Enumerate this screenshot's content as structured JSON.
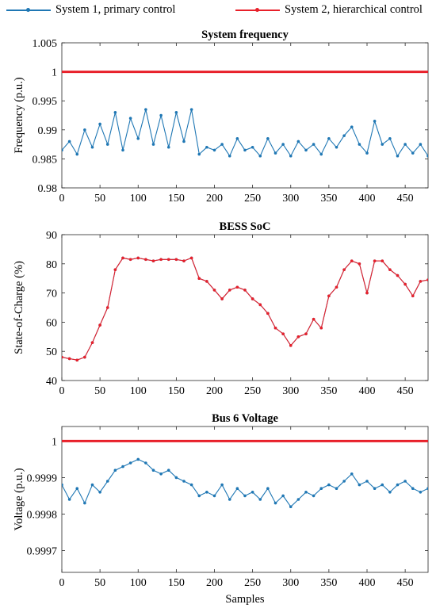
{
  "legend": [
    {
      "name": "System 1, primary control",
      "color": "#1f77b4"
    },
    {
      "name": "System 2, hierarchical control",
      "color": "#e8202a"
    }
  ],
  "xlabel": "Samples",
  "chart_data": [
    {
      "type": "line",
      "title": "System frequency",
      "xlabel": "",
      "ylabel": "Frequency (p.u.)",
      "xlim": [
        0,
        480
      ],
      "ylim": [
        0.98,
        1.005
      ],
      "xticks": [
        "0",
        "50",
        "100",
        "150",
        "200",
        "250",
        "300",
        "350",
        "400",
        "450"
      ],
      "yticks": [
        "0.98",
        "0.985",
        "0.99",
        "0.995",
        "1",
        "1.005"
      ],
      "series": [
        {
          "name": "System 1, primary control",
          "color": "#1f77b4",
          "marker": true,
          "x": [
            0,
            10,
            20,
            30,
            40,
            50,
            60,
            70,
            80,
            90,
            100,
            110,
            120,
            130,
            140,
            150,
            160,
            170,
            180,
            190,
            200,
            210,
            220,
            230,
            240,
            250,
            260,
            270,
            280,
            290,
            300,
            310,
            320,
            330,
            340,
            350,
            360,
            370,
            380,
            390,
            400,
            410,
            420,
            430,
            440,
            450,
            460,
            470,
            480
          ],
          "y": [
            0.9865,
            0.988,
            0.9858,
            0.99,
            0.987,
            0.991,
            0.9875,
            0.993,
            0.9865,
            0.992,
            0.9885,
            0.9935,
            0.9875,
            0.9925,
            0.987,
            0.993,
            0.988,
            0.9935,
            0.9858,
            0.987,
            0.9865,
            0.9875,
            0.9855,
            0.9885,
            0.9865,
            0.987,
            0.9855,
            0.9885,
            0.986,
            0.9875,
            0.9855,
            0.988,
            0.9865,
            0.9875,
            0.9858,
            0.9885,
            0.987,
            0.989,
            0.9905,
            0.9875,
            0.986,
            0.9915,
            0.9875,
            0.9885,
            0.9855,
            0.9875,
            0.986,
            0.9875,
            0.9855
          ]
        },
        {
          "name": "System 2, hierarchical control",
          "color": "#e8202a",
          "marker": false,
          "x": [
            0,
            480
          ],
          "y": [
            1.0,
            1.0
          ]
        }
      ]
    },
    {
      "type": "line",
      "title": "BESS SoC",
      "xlabel": "",
      "ylabel": "State-of-Charge (%)",
      "xlim": [
        0,
        480
      ],
      "ylim": [
        40,
        90
      ],
      "xticks": [
        "0",
        "50",
        "100",
        "150",
        "200",
        "250",
        "300",
        "350",
        "400",
        "450"
      ],
      "yticks": [
        "40",
        "50",
        "60",
        "70",
        "80",
        "90"
      ],
      "series": [
        {
          "name": "System 1, primary control",
          "color": "#1f77b4",
          "marker": true,
          "x": [
            0,
            10,
            20,
            30,
            40,
            50,
            60,
            70,
            80,
            90,
            100,
            110,
            120,
            130,
            140,
            150,
            160,
            170,
            180,
            190,
            200,
            210,
            220,
            230,
            240,
            250,
            260,
            270,
            280,
            290,
            300,
            310,
            320,
            330,
            340,
            350,
            360,
            370,
            380,
            390,
            400,
            410,
            420,
            430,
            440,
            450,
            460,
            470,
            480
          ],
          "y": [
            48,
            47.5,
            47,
            48,
            53,
            59,
            65,
            78,
            82,
            81.5,
            82,
            81.5,
            81,
            81.5,
            81.5,
            81.5,
            81,
            82,
            75,
            74,
            71,
            68,
            71,
            72,
            71,
            68,
            66,
            63,
            58,
            56,
            52,
            55,
            56,
            61,
            58,
            69,
            72,
            78,
            81,
            80,
            70,
            81,
            81,
            78,
            76,
            73,
            69,
            74,
            74.5
          ]
        },
        {
          "name": "System 2, hierarchical control",
          "color": "#e8202a",
          "marker": true,
          "x": [
            0,
            10,
            20,
            30,
            40,
            50,
            60,
            70,
            80,
            90,
            100,
            110,
            120,
            130,
            140,
            150,
            160,
            170,
            180,
            190,
            200,
            210,
            220,
            230,
            240,
            250,
            260,
            270,
            280,
            290,
            300,
            310,
            320,
            330,
            340,
            350,
            360,
            370,
            380,
            390,
            400,
            410,
            420,
            430,
            440,
            450,
            460,
            470,
            480
          ],
          "y": [
            48,
            47.5,
            47,
            48,
            53,
            59,
            65,
            78,
            82,
            81.5,
            82,
            81.5,
            81,
            81.5,
            81.5,
            81.5,
            81,
            82,
            75,
            74,
            71,
            68,
            71,
            72,
            71,
            68,
            66,
            63,
            58,
            56,
            52,
            55,
            56,
            61,
            58,
            69,
            72,
            78,
            81,
            80,
            70,
            81,
            81,
            78,
            76,
            73,
            69,
            74,
            74.5
          ]
        }
      ]
    },
    {
      "type": "line",
      "title": "Bus 6 Voltage",
      "xlabel": "Samples",
      "ylabel": "Voltage (p.u.)",
      "xlim": [
        0,
        480
      ],
      "ylim": [
        0.99964,
        1.00004
      ],
      "xticks": [
        "0",
        "50",
        "100",
        "150",
        "200",
        "250",
        "300",
        "350",
        "400",
        "450"
      ],
      "yticks": [
        "0.9997",
        "0.9998",
        "0.9999",
        "1"
      ],
      "series": [
        {
          "name": "System 1, primary control",
          "color": "#1f77b4",
          "marker": true,
          "x": [
            0,
            10,
            20,
            30,
            40,
            50,
            60,
            70,
            80,
            90,
            100,
            110,
            120,
            130,
            140,
            150,
            160,
            170,
            180,
            190,
            200,
            210,
            220,
            230,
            240,
            250,
            260,
            270,
            280,
            290,
            300,
            310,
            320,
            330,
            340,
            350,
            360,
            370,
            380,
            390,
            400,
            410,
            420,
            430,
            440,
            450,
            460,
            470,
            480
          ],
          "y": [
            0.99988,
            0.99984,
            0.99987,
            0.99983,
            0.99988,
            0.99986,
            0.99989,
            0.99992,
            0.99993,
            0.99994,
            0.99995,
            0.99994,
            0.99992,
            0.99991,
            0.99992,
            0.9999,
            0.99989,
            0.99988,
            0.99985,
            0.99986,
            0.99985,
            0.99988,
            0.99984,
            0.99987,
            0.99985,
            0.99986,
            0.99984,
            0.99987,
            0.99983,
            0.99985,
            0.99982,
            0.99984,
            0.99986,
            0.99985,
            0.99987,
            0.99988,
            0.99987,
            0.99989,
            0.99991,
            0.99988,
            0.99989,
            0.99987,
            0.99988,
            0.99986,
            0.99988,
            0.99989,
            0.99987,
            0.99986,
            0.99987
          ]
        },
        {
          "name": "System 2, hierarchical control",
          "color": "#e8202a",
          "marker": false,
          "x": [
            0,
            480
          ],
          "y": [
            1.0,
            1.0
          ]
        }
      ]
    }
  ]
}
